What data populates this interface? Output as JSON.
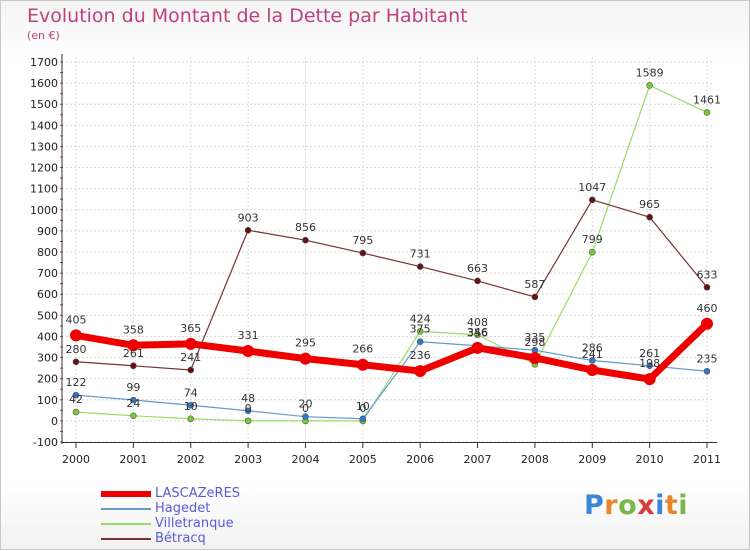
{
  "header": {
    "title": "Evolution du Montant de la Dette par Habitant",
    "subtitle": "(en €)"
  },
  "logo": {
    "text": "Proxiti",
    "letters": [
      {
        "ch": "P",
        "color": "#3a86d8"
      },
      {
        "ch": "r",
        "color": "#e8862a"
      },
      {
        "ch": "o",
        "color": "#7ab648"
      },
      {
        "ch": "x",
        "color": "#d93a3a"
      },
      {
        "ch": "i",
        "color": "#3a86d8"
      },
      {
        "ch": "t",
        "color": "#e8862a"
      },
      {
        "ch": "i",
        "color": "#7ab648"
      }
    ]
  },
  "chart_data": {
    "type": "line",
    "title": "Evolution du Montant de la Dette par Habitant",
    "ylabel": "(en €)",
    "ylim": [
      -100,
      1700
    ],
    "yticks": [
      -100,
      0,
      100,
      200,
      300,
      400,
      500,
      600,
      700,
      800,
      900,
      1000,
      1100,
      1200,
      1300,
      1400,
      1500,
      1600,
      1700
    ],
    "categories": [
      "2000",
      "2001",
      "2002",
      "2003",
      "2004",
      "2005",
      "2006",
      "2007",
      "2008",
      "2009",
      "2010",
      "2011"
    ],
    "grid": true,
    "legend": "bottom-left",
    "series": [
      {
        "name": "Villetranque",
        "color": "#99dd66",
        "marker": "#77cc33",
        "width": 1.2,
        "radius": 3,
        "values": [
          42,
          24,
          10,
          0,
          0,
          0,
          424,
          408,
          268,
          799,
          1589,
          1461
        ],
        "labels": [
          "42",
          "24",
          "10",
          "0",
          "0",
          "0",
          "424",
          "408",
          "",
          "799",
          "1589",
          "1461"
        ]
      },
      {
        "name": "Hagedet",
        "color": "#6699cc",
        "marker": "#3377cc",
        "width": 1.2,
        "radius": 3,
        "values": [
          122,
          99,
          74,
          48,
          20,
          10,
          375,
          356,
          335,
          286,
          261,
          235
        ],
        "labels": [
          "122",
          "99",
          "74",
          "48",
          "20",
          "10",
          "375",
          "356",
          "335",
          "286",
          "261",
          "235"
        ]
      },
      {
        "name": "Bétracq",
        "color": "#773333",
        "marker": "#661111",
        "width": 1.2,
        "radius": 3,
        "values": [
          280,
          261,
          241,
          903,
          856,
          795,
          731,
          663,
          587,
          1047,
          965,
          633
        ],
        "labels": [
          "280",
          "261",
          "241",
          "903",
          "856",
          "795",
          "731",
          "663",
          "587",
          "1047",
          "965",
          "633"
        ]
      },
      {
        "name": "LASCAZeRES",
        "color": "#ee0000",
        "marker": "#ee0000",
        "width": 7,
        "radius": 6,
        "values": [
          405,
          358,
          365,
          331,
          295,
          266,
          236,
          346,
          298,
          241,
          198,
          460
        ],
        "labels": [
          "405",
          "358",
          "365",
          "331",
          "295",
          "266",
          "236",
          "346",
          "298",
          "241",
          "198",
          "460"
        ]
      }
    ],
    "legend_order": [
      "LASCAZeRES",
      "Hagedet",
      "Villetranque",
      "Bétracq"
    ]
  }
}
